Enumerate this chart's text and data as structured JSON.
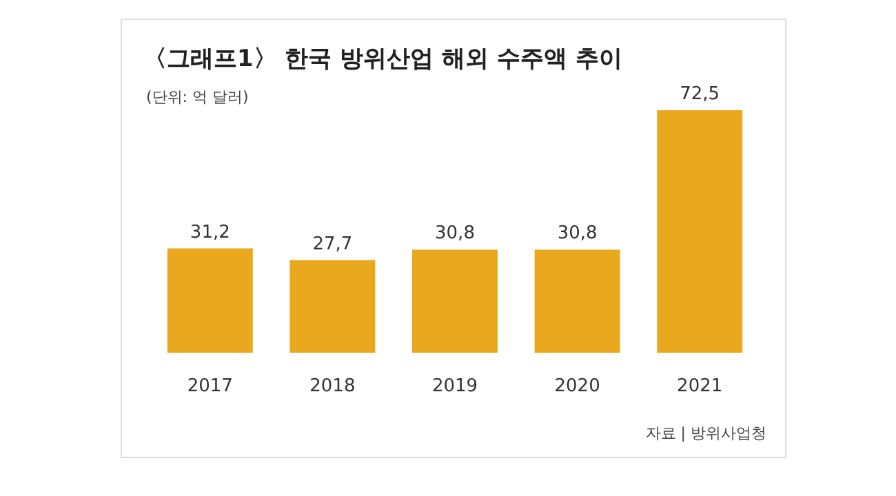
{
  "chart_data": {
    "type": "bar",
    "title": "〈그래프1〉 한국 방위산업 해외 수주액 추이",
    "subtitle": "(단위: 억 달러)",
    "categories": [
      "2017",
      "2018",
      "2019",
      "2020",
      "2021"
    ],
    "values": [
      31.2,
      27.7,
      30.8,
      30.8,
      72.5
    ],
    "value_labels": [
      "31,2",
      "27,7",
      "30,8",
      "30,8",
      "72,5"
    ],
    "color": "#eaa81e",
    "annotations": [
      "자료 | 방위사업청"
    ]
  }
}
